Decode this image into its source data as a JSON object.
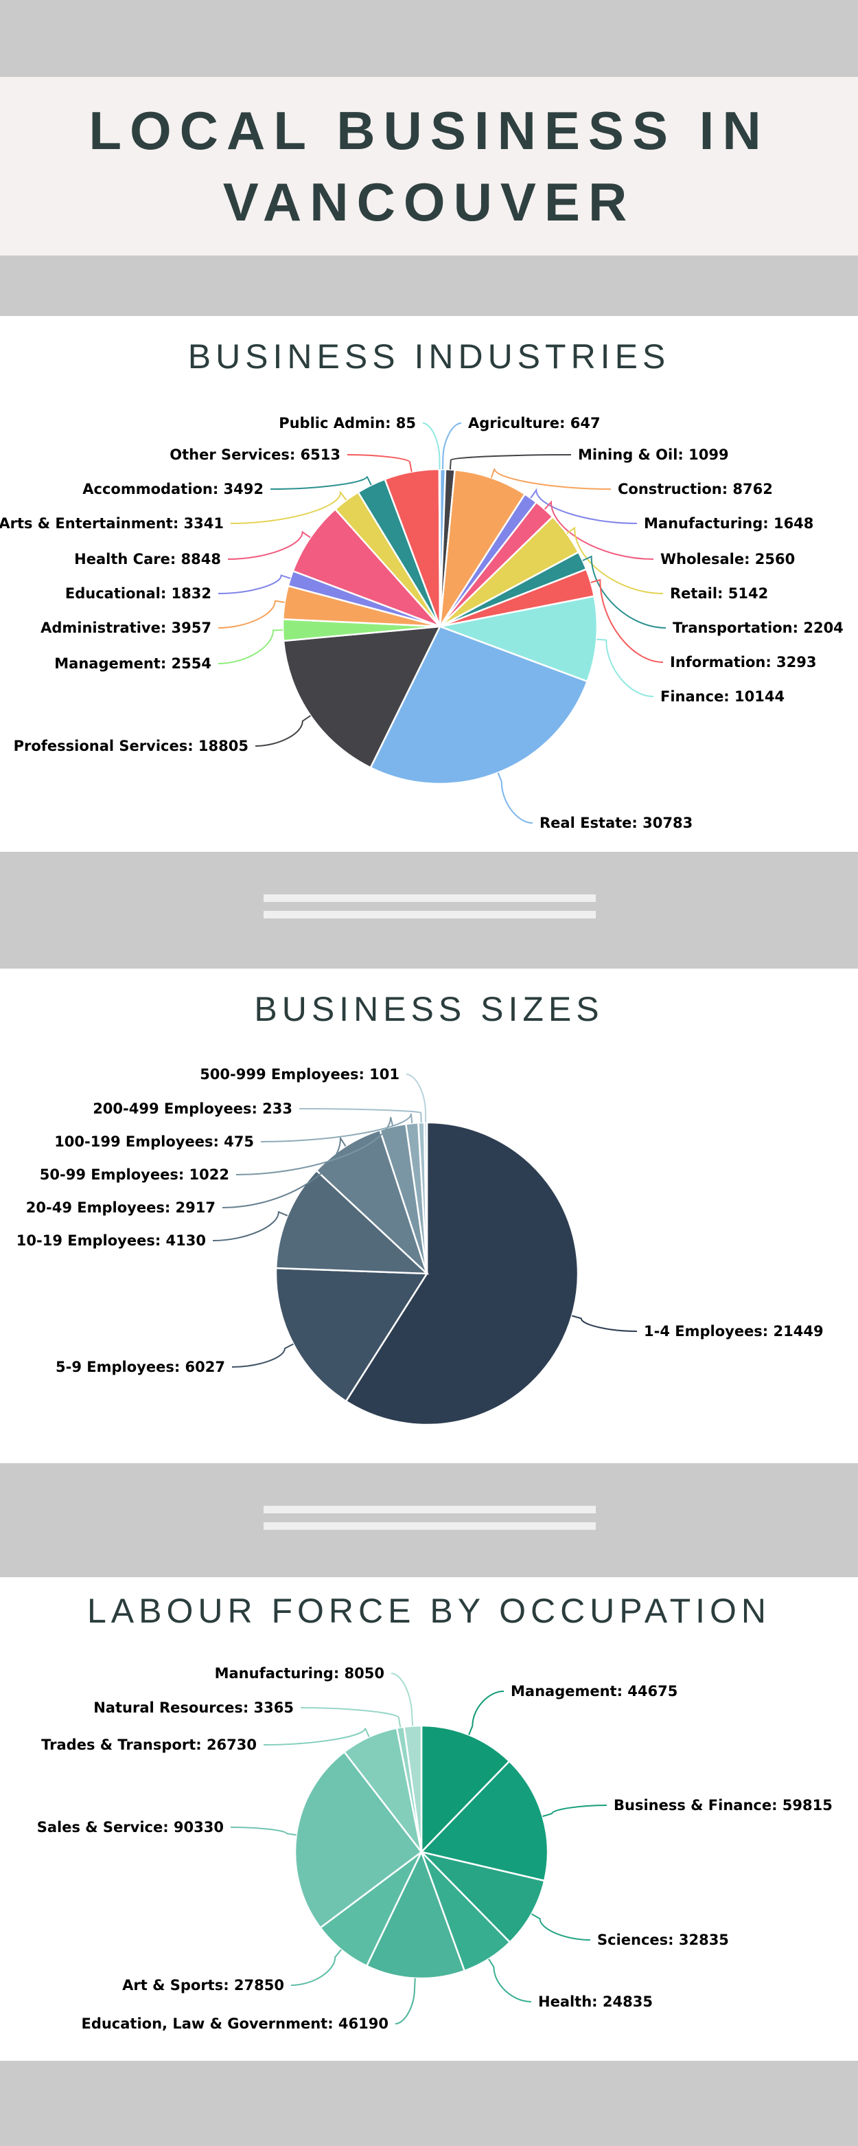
{
  "title": "LOCAL BUSINESS IN VANCOUVER",
  "title_lines": [
    "LOCAL BUSINESS IN",
    "VANCOUVER"
  ],
  "chart_data": [
    {
      "type": "pie",
      "title": "BUSINESS INDUSTRIES",
      "categories": [
        "Agriculture",
        "Mining & Oil",
        "Construction",
        "Manufacturing",
        "Wholesale",
        "Retail",
        "Transportation",
        "Information",
        "Finance",
        "Real Estate",
        "Professional Services",
        "Management",
        "Administrative",
        "Educational",
        "Health Care",
        "Arts & Entertainment",
        "Accommodation",
        "Other Services",
        "Public Admin"
      ],
      "values": [
        647,
        1099,
        8762,
        1648,
        2560,
        5142,
        2204,
        3293,
        10144,
        30783,
        18805,
        2554,
        3957,
        1832,
        8848,
        3341,
        3492,
        6513,
        85
      ],
      "colors": [
        "#7cb5ec",
        "#434348",
        "#f7a35c",
        "#8085e9",
        "#f15c80",
        "#e4d354",
        "#2b908f",
        "#f45b5b",
        "#91e8e1",
        "#7cb5ec",
        "#434348",
        "#90ed7d",
        "#f7a35c",
        "#8085e9",
        "#f15c80",
        "#e4d354",
        "#2b908f",
        "#f45b5b",
        "#91e8e1"
      ],
      "labels": [
        "Agriculture: 647",
        "Mining & Oil: 1099",
        "Construction: 8762",
        "Manufacturing: 1648",
        "Wholesale: 2560",
        "Retail: 5142",
        "Transportation: 2204",
        "Information: 3293",
        "Finance: 10144",
        "Real Estate: 30783",
        "Professional Services: 18805",
        "Management: 2554",
        "Administrative: 3957",
        "Educational: 1832",
        "Health Care: 8848",
        "Arts & Entertainment: 3341",
        "Accommodation: 3492",
        "Other Services: 6513",
        "Public Admin: 85"
      ]
    },
    {
      "type": "pie",
      "title": "BUSINESS SIZES",
      "categories": [
        "1-4 Employees",
        "5-9 Employees",
        "10-19 Employees",
        "20-49 Employees",
        "50-99 Employees",
        "100-199 Employees",
        "200-499 Employees",
        "500-999 Employees"
      ],
      "values": [
        21449,
        6027,
        4130,
        2917,
        1022,
        475,
        233,
        101
      ],
      "colors": [
        "#2e3e52",
        "#3f5366",
        "#536a7b",
        "#66808f",
        "#7a96a4",
        "#8fabb8",
        "#a3bfcb",
        "#b8d3dd"
      ],
      "labels": [
        "1-4 Employees: 21449",
        "5-9 Employees: 6027",
        "10-19 Employees: 4130",
        "20-49 Employees: 2917",
        "50-99 Employees: 1022",
        "100-199 Employees: 475",
        "200-499 Employees: 233",
        "500-999 Employees: 101"
      ]
    },
    {
      "type": "pie",
      "title": "LABOUR FORCE BY OCCUPATION",
      "categories": [
        "Management",
        "Business & Finance",
        "Sciences",
        "Health",
        "Education, Law & Government",
        "Art & Sports",
        "Sales & Service",
        "Trades & Transport",
        "Natural Resources",
        "Manufacturing"
      ],
      "values": [
        44675,
        59815,
        32835,
        24835,
        46190,
        27850,
        90330,
        26730,
        3365,
        8050
      ],
      "colors": [
        "#119a76",
        "#159e7b",
        "#27a585",
        "#38ae91",
        "#4cb49a",
        "#5cbda5",
        "#6fc4b0",
        "#82cebb",
        "#96d6c6",
        "#a8ddd0"
      ],
      "labels": [
        "Management: 44675",
        "Business & Finance: 59815",
        "Sciences: 32835",
        "Health: 24835",
        "Education, Law & Government: 46190",
        "Art & Sports: 27850",
        "Sales & Service: 90330",
        "Trades & Transport: 26730",
        "Natural Resources: 3365",
        "Manufacturing: 8050"
      ]
    }
  ]
}
